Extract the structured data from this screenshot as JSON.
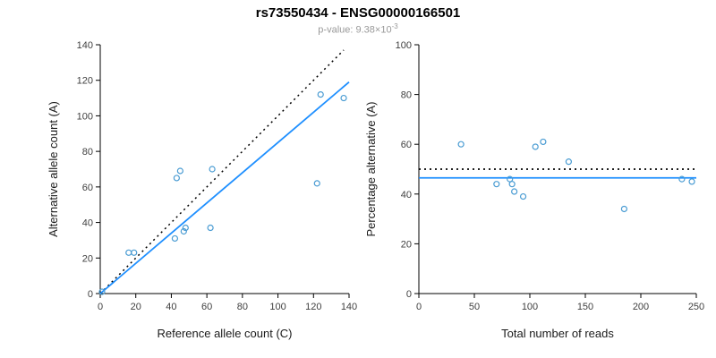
{
  "header": {
    "title": "rs73550434 - ENSG00000166501",
    "subtitle_base": "p-value: 9.38×10",
    "subtitle_exp": "-3"
  },
  "colors": {
    "point": "#4a9cd3",
    "fit_line": "#1e8fff",
    "identity_line": "#000000",
    "subtitle_text": "#999999",
    "axis": "#000000"
  },
  "chart_data": [
    {
      "type": "scatter",
      "title": "",
      "xlabel": "Reference allele count (C)",
      "ylabel": "Alternative allele count (A)",
      "xlim": [
        0,
        140
      ],
      "ylim": [
        0,
        140
      ],
      "xticks": [
        0,
        20,
        40,
        60,
        80,
        100,
        120,
        140
      ],
      "yticks": [
        0,
        20,
        40,
        60,
        80,
        100,
        120,
        140
      ],
      "grid": false,
      "legend": "none",
      "points": [
        [
          1,
          1
        ],
        [
          16,
          23
        ],
        [
          19,
          23
        ],
        [
          42,
          31
        ],
        [
          43,
          65
        ],
        [
          45,
          69
        ],
        [
          47,
          35
        ],
        [
          48,
          37
        ],
        [
          62,
          37
        ],
        [
          63,
          70
        ],
        [
          122,
          62
        ],
        [
          124,
          112
        ],
        [
          137,
          110
        ]
      ],
      "lines": [
        {
          "role": "identity",
          "x1": 0,
          "y1": 0,
          "x2": 137,
          "y2": 137,
          "color": "#000000",
          "style": "dotted",
          "width": 1.5
        },
        {
          "role": "fit",
          "x1": 0,
          "y1": 0,
          "x2": 140,
          "y2": 119,
          "color": "#1e8fff",
          "style": "solid",
          "width": 1.8
        }
      ]
    },
    {
      "type": "scatter",
      "title": "",
      "xlabel": "Total number of reads",
      "ylabel": "Percentage alternative (A)",
      "xlim": [
        0,
        250
      ],
      "ylim": [
        0,
        100
      ],
      "xticks": [
        0,
        50,
        100,
        150,
        200,
        250
      ],
      "yticks": [
        0,
        20,
        40,
        60,
        80,
        100
      ],
      "grid": false,
      "legend": "none",
      "points": [
        [
          38,
          60
        ],
        [
          70,
          44
        ],
        [
          82,
          46
        ],
        [
          84,
          44
        ],
        [
          86,
          41
        ],
        [
          94,
          39
        ],
        [
          105,
          59
        ],
        [
          112,
          61
        ],
        [
          135,
          53
        ],
        [
          185,
          34
        ],
        [
          237,
          46
        ],
        [
          246,
          45
        ]
      ],
      "lines": [
        {
          "role": "expected-50pct",
          "x1": 0,
          "y1": 50,
          "x2": 250,
          "y2": 50,
          "color": "#000000",
          "style": "dotted",
          "width": 1.8
        },
        {
          "role": "mean-percentage",
          "x1": 0,
          "y1": 46.5,
          "x2": 250,
          "y2": 46.5,
          "color": "#1e8fff",
          "style": "solid",
          "width": 1.8
        }
      ]
    }
  ]
}
